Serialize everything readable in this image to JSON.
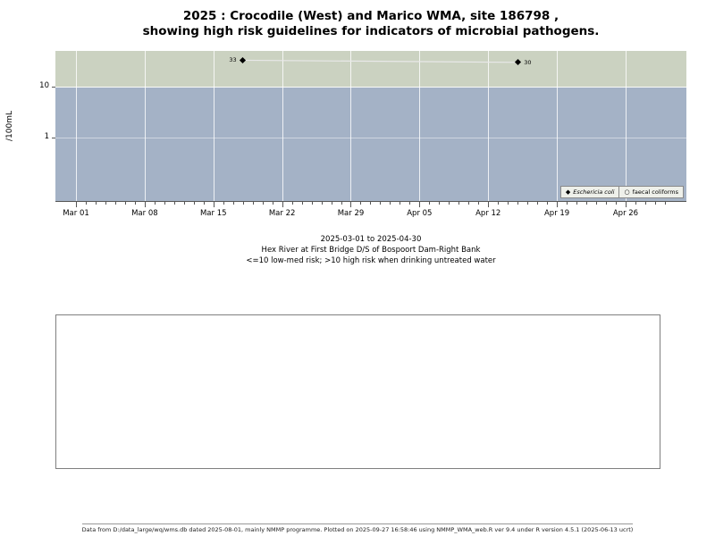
{
  "title": {
    "line1": "2025 : Crocodile (West) and Marico WMA, site 186798 ,",
    "line2": "showing high risk guidelines for indicators of microbial pathogens."
  },
  "y_axis": {
    "label": "/100mL"
  },
  "chart_data": {
    "type": "scatter",
    "y_scale": "log",
    "title": "2025 : Crocodile (West) and Marico WMA, site 186798 , showing high risk guidelines for indicators of microbial pathogens.",
    "ylabel": "/100mL",
    "date_range": [
      "2025-03-01",
      "2025-04-30"
    ],
    "high_risk_threshold": 10,
    "y_ticks": [
      10,
      1
    ],
    "x_ticks": [
      {
        "label": "Mar 01",
        "day": 0
      },
      {
        "label": "Mar 08",
        "day": 7
      },
      {
        "label": "Mar 15",
        "day": 14
      },
      {
        "label": "Mar 22",
        "day": 21
      },
      {
        "label": "Mar 29",
        "day": 28
      },
      {
        "label": "Apr 05",
        "day": 35
      },
      {
        "label": "Apr 12",
        "day": 42
      },
      {
        "label": "Apr 19",
        "day": 49
      },
      {
        "label": "Apr 26",
        "day": 56
      }
    ],
    "minor_tick_days": 60,
    "series": [
      {
        "name": "Eschericia coli",
        "marker": "diamond",
        "points": [
          {
            "day": 17,
            "value": 33,
            "label": "33",
            "label_side": "left"
          },
          {
            "day": 45,
            "value": 30,
            "label": "30",
            "label_side": "right"
          }
        ]
      },
      {
        "name": "faecal coliforms",
        "marker": "circle",
        "points": []
      }
    ],
    "colors": {
      "high_risk_band": "#cbd2c1",
      "normal_band": "#a4b2c6",
      "gridline": "#ffffff",
      "point": "#000000",
      "connector": "#e8e8e8"
    }
  },
  "legend": [
    {
      "marker": "diamond",
      "label": "Eschericia coli",
      "italic": true
    },
    {
      "marker": "circle",
      "label": "faecal coliforms",
      "italic": false
    }
  ],
  "caption": {
    "line1": "2025-03-01 to 2025-04-30",
    "line2": "Hex River at First Bridge D/S of Bospoort Dam-Right Bank",
    "line3": "<=10 low-med risk; >10 high risk when drinking untreated water"
  },
  "footer": "Data from D:/data_large/wq/wms.db dated 2025-08-01, mainly NMMP programme. Plotted on 2025-09-27 16:58:46 using NMMP_WMA_web.R ver 9.4 under R version 4.5.1 (2025-06-13 ucrt)"
}
